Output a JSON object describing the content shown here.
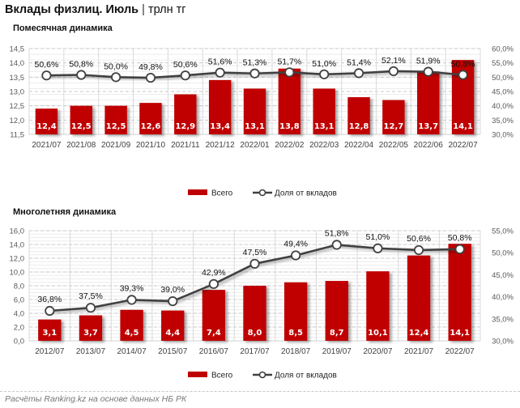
{
  "header": {
    "title_bold": "Вклады физлиц. Июль",
    "separator": "|",
    "unit": "трлн тг"
  },
  "footer": {
    "source": "Расчёты Ranking.kz на основе данных НБ РК"
  },
  "colors": {
    "bar": "#C00000",
    "line": "#404040",
    "marker_fill": "#ffffff"
  },
  "chart_data": [
    {
      "type": "bar",
      "title": "Помесячная динамика",
      "categories": [
        "2021/07",
        "2021/08",
        "2021/09",
        "2021/10",
        "2021/11",
        "2021/12",
        "2022/01",
        "2022/02",
        "2022/03",
        "2022/04",
        "2022/05",
        "2022/06",
        "2022/07"
      ],
      "series": [
        {
          "name": "Всего",
          "type": "bar",
          "axis": "left",
          "values": [
            12.4,
            12.5,
            12.5,
            12.6,
            12.9,
            13.4,
            13.1,
            13.8,
            13.1,
            12.8,
            12.7,
            13.7,
            14.1
          ],
          "labels": [
            "12,4",
            "12,5",
            "12,5",
            "12,6",
            "12,9",
            "13,4",
            "13,1",
            "13,8",
            "13,1",
            "12,8",
            "12,7",
            "13,7",
            "14,1"
          ]
        },
        {
          "name": "Доля от вкладов",
          "type": "line",
          "axis": "right",
          "values": [
            50.6,
            50.8,
            50.0,
            49.8,
            50.6,
            51.6,
            51.3,
            51.7,
            51.0,
            51.4,
            52.1,
            51.9,
            50.8
          ],
          "labels": [
            "50,6%",
            "50,8%",
            "50,0%",
            "49,8%",
            "50,6%",
            "51,6%",
            "51,3%",
            "51,7%",
            "51,0%",
            "51,4%",
            "52,1%",
            "51,9%",
            "50,8%"
          ]
        }
      ],
      "y_left": {
        "min": 11.5,
        "max": 14.5,
        "step": 0.5,
        "ticks": [
          "11,5",
          "12,0",
          "12,5",
          "13,0",
          "13,5",
          "14,0",
          "14,5"
        ]
      },
      "y_right": {
        "min": 30,
        "max": 60,
        "step": 5,
        "ticks": [
          "30,0%",
          "35,0%",
          "40,0%",
          "45,0%",
          "50,0%",
          "55,0%",
          "60,0%"
        ]
      },
      "grid": true,
      "legend": {
        "position": "bottom",
        "items": [
          "Всего",
          "Доля от вкладов"
        ]
      }
    },
    {
      "type": "bar",
      "title": "Многолетняя динамика",
      "categories": [
        "2012/07",
        "2013/07",
        "2014/07",
        "2015/07",
        "2016/07",
        "2017/07",
        "2018/07",
        "2019/07",
        "2020/07",
        "2021/07",
        "2022/07"
      ],
      "series": [
        {
          "name": "Всего",
          "type": "bar",
          "axis": "left",
          "values": [
            3.1,
            3.7,
            4.5,
            4.4,
            7.4,
            8.0,
            8.5,
            8.7,
            10.1,
            12.4,
            14.1
          ],
          "labels": [
            "3,1",
            "3,7",
            "4,5",
            "4,4",
            "7,4",
            "8,0",
            "8,5",
            "8,7",
            "10,1",
            "12,4",
            "14,1"
          ]
        },
        {
          "name": "Доля от вкладов",
          "type": "line",
          "axis": "right",
          "values": [
            36.8,
            37.5,
            39.3,
            39.0,
            42.9,
            47.5,
            49.4,
            51.8,
            51.0,
            50.6,
            50.8
          ],
          "labels": [
            "36,8%",
            "37,5%",
            "39,3%",
            "39,0%",
            "42,9%",
            "47,5%",
            "49,4%",
            "51,8%",
            "51,0%",
            "50,6%",
            "50,8%"
          ]
        }
      ],
      "y_left": {
        "min": 0,
        "max": 16,
        "step": 2,
        "ticks": [
          "0,0",
          "2,0",
          "4,0",
          "6,0",
          "8,0",
          "10,0",
          "12,0",
          "14,0",
          "16,0"
        ]
      },
      "y_right": {
        "min": 30,
        "max": 55,
        "step": 5,
        "ticks": [
          "30,0%",
          "35,0%",
          "40,0%",
          "45,0%",
          "50,0%",
          "55,0%"
        ]
      },
      "grid": true,
      "legend": {
        "position": "bottom",
        "items": [
          "Всего",
          "Доля от вкладов"
        ]
      }
    }
  ]
}
